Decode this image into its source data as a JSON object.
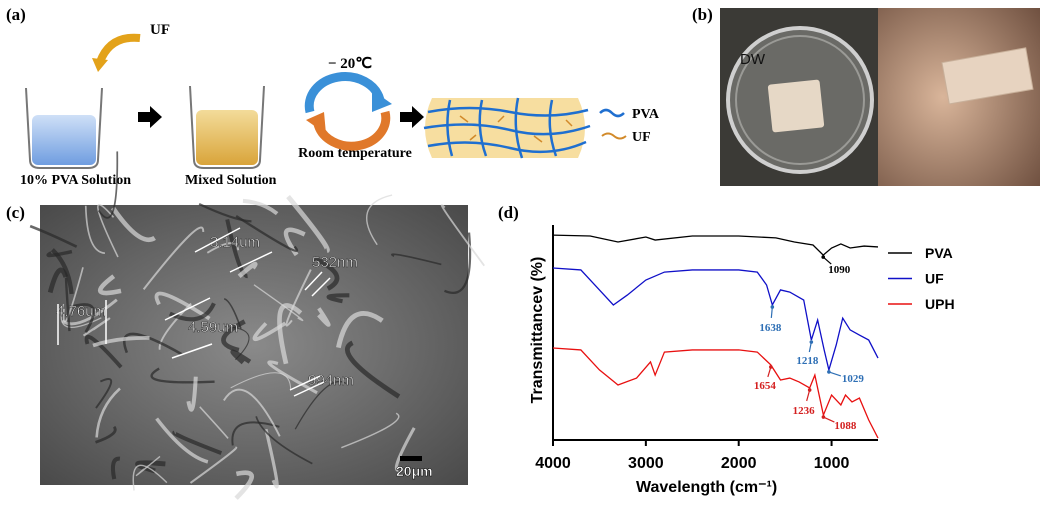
{
  "panel_a": {
    "label": "(a)",
    "additive": "UF",
    "beaker_1": "10% PVA Solution",
    "beaker_2": "Mixed Solution",
    "cold": "− 20℃",
    "warm": "Room temperature",
    "legend": [
      "PVA",
      "UF"
    ]
  },
  "panel_b": {
    "label": "(b)",
    "dish": "DW"
  },
  "panel_c": {
    "label": "(c)",
    "measurements": [
      "3.14um",
      "532nm",
      "4.76um",
      "4.59um",
      "994nm"
    ],
    "scale_bar": "20μm"
  },
  "panel_d": {
    "label": "(d)"
  },
  "chart_data": {
    "type": "line",
    "xlabel": "Wavelength (cm⁻¹)",
    "ylabel": "Transmittancev (%)",
    "xlim": [
      4000,
      500
    ],
    "xticks": [
      4000,
      3000,
      2000,
      1000
    ],
    "ylim": [
      0,
      100
    ],
    "series": [
      {
        "name": "PVA",
        "color": "#000000",
        "x": [
          4000,
          3600,
          3300,
          3000,
          2900,
          2500,
          2000,
          1600,
          1400,
          1200,
          1090,
          1000,
          900,
          800,
          650,
          500
        ],
        "values": [
          95.3,
          94.9,
          92.1,
          94.4,
          93.0,
          94.9,
          94.9,
          94.0,
          92.1,
          90.7,
          86.0,
          89.3,
          91.2,
          89.3,
          90.2,
          89.8
        ]
      },
      {
        "name": "UF",
        "color": "#1010c8",
        "x": [
          4000,
          3700,
          3500,
          3350,
          3200,
          3000,
          2800,
          2500,
          2000,
          1800,
          1700,
          1638,
          1550,
          1450,
          1300,
          1218,
          1150,
          1080,
          1029,
          950,
          880,
          800,
          700,
          600,
          500
        ],
        "values": [
          80.0,
          79.1,
          69.8,
          62.8,
          67.4,
          74.4,
          78.1,
          79.1,
          79.1,
          78.1,
          72.1,
          62.8,
          69.8,
          68.8,
          65.1,
          46.5,
          55.8,
          41.9,
          32.6,
          44.2,
          56.7,
          51.2,
          48.8,
          46.5,
          38.1
        ]
      },
      {
        "name": "UPH",
        "color": "#e81010",
        "x": [
          4000,
          3700,
          3500,
          3300,
          3100,
          2950,
          2900,
          2800,
          2500,
          2000,
          1800,
          1654,
          1550,
          1450,
          1350,
          1236,
          1180,
          1088,
          1000,
          900,
          850,
          780,
          700,
          600,
          500
        ],
        "values": [
          42.8,
          41.9,
          32.6,
          25.6,
          28.8,
          36.3,
          30.2,
          40.9,
          41.9,
          41.9,
          40.9,
          34.9,
          27.9,
          28.8,
          27.0,
          24.2,
          30.2,
          11.6,
          20.9,
          16.3,
          20.9,
          17.7,
          19.5,
          9.3,
          0.9
        ]
      }
    ],
    "annotations": [
      {
        "label": "1090",
        "x": 1090,
        "color": "#000000"
      },
      {
        "label": "1638",
        "x": 1638,
        "color": "#2e6fb5"
      },
      {
        "label": "1218",
        "x": 1218,
        "color": "#2e6fb5"
      },
      {
        "label": "1029",
        "x": 1029,
        "color": "#2e6fb5"
      },
      {
        "label": "1654",
        "x": 1654,
        "color": "#d42020"
      },
      {
        "label": "1236",
        "x": 1236,
        "color": "#d42020"
      },
      {
        "label": "1088",
        "x": 1088,
        "color": "#d42020"
      }
    ]
  }
}
